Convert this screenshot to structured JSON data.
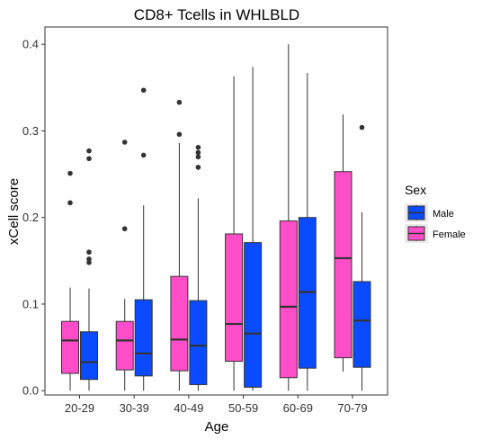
{
  "chart_data": {
    "type": "boxplot",
    "title": "CD8+ Tcells in WHLBLD",
    "xlabel": "Age",
    "ylabel": "xCell score",
    "categories": [
      "20-29",
      "30-39",
      "40-49",
      "50-59",
      "60-69",
      "70-79"
    ],
    "ylim": [
      -0.005,
      0.42
    ],
    "yticks": [
      0.0,
      0.1,
      0.2,
      0.3,
      0.4
    ],
    "ytick_labels": [
      "0.0",
      "0.1",
      "0.2",
      "0.3",
      "0.4"
    ],
    "grid": false,
    "legend": {
      "title": "Sex",
      "placement": "right",
      "entries": [
        {
          "name": "Male",
          "color": "#0a4bff"
        },
        {
          "name": "Female",
          "color": "#ff4ec8"
        }
      ]
    },
    "series": [
      {
        "name": "Female",
        "color": "#ff4ec8",
        "boxes": [
          {
            "min": 0.0,
            "q1": 0.02,
            "median": 0.058,
            "q3": 0.08,
            "max": 0.119,
            "outliers": [
              0.217,
              0.251
            ]
          },
          {
            "min": 0.0,
            "q1": 0.024,
            "median": 0.058,
            "q3": 0.08,
            "max": 0.106,
            "outliers": [
              0.187,
              0.287
            ]
          },
          {
            "min": 0.0,
            "q1": 0.023,
            "median": 0.059,
            "q3": 0.132,
            "max": 0.286,
            "outliers": [
              0.296,
              0.333
            ]
          },
          {
            "min": 0.0,
            "q1": 0.034,
            "median": 0.077,
            "q3": 0.181,
            "max": 0.363,
            "outliers": []
          },
          {
            "min": 0.0,
            "q1": 0.015,
            "median": 0.097,
            "q3": 0.196,
            "max": 0.4,
            "outliers": []
          },
          {
            "min": 0.022,
            "q1": 0.038,
            "median": 0.153,
            "q3": 0.253,
            "max": 0.319,
            "outliers": []
          }
        ]
      },
      {
        "name": "Male",
        "color": "#0a4bff",
        "boxes": [
          {
            "min": 0.0,
            "q1": 0.013,
            "median": 0.033,
            "q3": 0.068,
            "max": 0.118,
            "outliers": [
              0.148,
              0.152,
              0.16,
              0.268,
              0.277
            ]
          },
          {
            "min": 0.0,
            "q1": 0.017,
            "median": 0.043,
            "q3": 0.105,
            "max": 0.214,
            "outliers": [
              0.272,
              0.347
            ]
          },
          {
            "min": 0.0,
            "q1": 0.007,
            "median": 0.052,
            "q3": 0.104,
            "max": 0.222,
            "outliers": [
              0.258,
              0.27,
              0.275,
              0.281
            ]
          },
          {
            "min": 0.0,
            "q1": 0.004,
            "median": 0.066,
            "q3": 0.171,
            "max": 0.374,
            "outliers": []
          },
          {
            "min": 0.0,
            "q1": 0.026,
            "median": 0.114,
            "q3": 0.2,
            "max": 0.367,
            "outliers": []
          },
          {
            "min": 0.0,
            "q1": 0.027,
            "median": 0.081,
            "q3": 0.126,
            "max": 0.206,
            "outliers": [
              0.304
            ]
          }
        ]
      }
    ]
  }
}
